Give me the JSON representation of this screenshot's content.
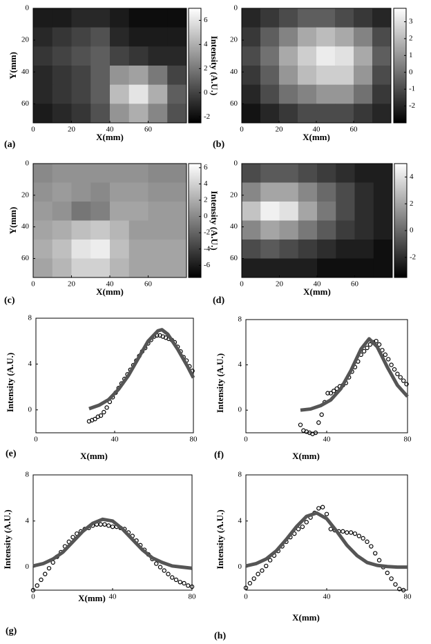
{
  "chart_data": [
    {
      "type": "heatmap",
      "label": "(a)",
      "x_label": "X(mm)",
      "y_label": "Y(mm)",
      "colorbar_label": "Intensity (A.U.)",
      "x": [
        5,
        15,
        25,
        35,
        45,
        55,
        65,
        75
      ],
      "y": [
        6,
        18,
        30,
        42,
        54,
        66
      ],
      "z": [
        [
          -1.5,
          -1.5,
          -1,
          -1,
          -1.5,
          -2,
          -2,
          -2
        ],
        [
          -1,
          -0.5,
          0,
          0.5,
          -1,
          -1.5,
          -1.5,
          -1.5
        ],
        [
          -0.5,
          0,
          0.5,
          1,
          0,
          -0.5,
          -1,
          -1
        ],
        [
          -1,
          -0.5,
          0,
          1,
          3,
          3.5,
          2,
          0
        ],
        [
          -1,
          -0.5,
          0,
          1,
          4.5,
          6,
          4,
          1
        ],
        [
          -1.5,
          -1,
          -0.5,
          0.5,
          3,
          4,
          2.5,
          0.5
        ]
      ],
      "xlim": [
        0,
        80
      ],
      "ylim": [
        0,
        72
      ],
      "xticks": [
        0,
        20,
        40,
        60
      ],
      "yticks": [
        0,
        20,
        40,
        60
      ],
      "clim": [
        -2.5,
        7
      ],
      "cticks": [
        -2,
        0,
        2,
        4,
        6
      ],
      "colormap": "gray"
    },
    {
      "type": "heatmap",
      "label": "(b)",
      "x_label": "X(mm)",
      "x": [
        5,
        15,
        25,
        35,
        45,
        55,
        65,
        75
      ],
      "y": [
        6,
        18,
        30,
        42,
        54,
        66
      ],
      "z": [
        [
          -2,
          -1.5,
          -1,
          -0.5,
          -0.5,
          -1,
          -1.5,
          -2
        ],
        [
          -1.5,
          -0.5,
          0.5,
          1.5,
          2,
          1.5,
          0.5,
          -1
        ],
        [
          -1,
          0,
          1.5,
          2.5,
          3.3,
          3,
          1.5,
          -0.5
        ],
        [
          -1.5,
          -0.5,
          1,
          2,
          2.5,
          2.5,
          1,
          -1
        ],
        [
          -2,
          -1,
          0,
          0.5,
          1,
          1,
          0,
          -1.5
        ],
        [
          -2.5,
          -2,
          -1.5,
          -1,
          -1,
          -1,
          -1.5,
          -2
        ]
      ],
      "xlim": [
        0,
        80
      ],
      "ylim": [
        0,
        72
      ],
      "xticks": [
        0,
        20,
        40,
        60
      ],
      "yticks": [
        0,
        20,
        40,
        60
      ],
      "clim": [
        -3,
        3.8
      ],
      "cticks": [
        -2,
        -1,
        0,
        1,
        2,
        3
      ],
      "colormap": "gray"
    },
    {
      "type": "heatmap",
      "label": "(c)",
      "x_label": "X(mm)",
      "y_label": "Y(mm)",
      "colorbar_label": "Intensity (A.U.)",
      "x": [
        5,
        15,
        25,
        35,
        45,
        55,
        65,
        75
      ],
      "y": [
        6,
        18,
        30,
        42,
        54,
        66
      ],
      "z": [
        [
          0,
          0.5,
          0.5,
          0.5,
          0.5,
          0.5,
          0,
          0
        ],
        [
          0.5,
          1,
          0.5,
          0,
          1,
          1,
          0.5,
          0.5
        ],
        [
          1,
          0.5,
          -1,
          -0.5,
          1.5,
          1.5,
          1,
          1
        ],
        [
          1.5,
          2,
          3,
          3.5,
          2.5,
          1,
          1,
          1
        ],
        [
          2,
          3,
          5,
          5.5,
          3,
          1.5,
          1.5,
          1.5
        ],
        [
          1.5,
          2.5,
          4,
          4,
          2.5,
          1.5,
          1.5,
          1.5
        ]
      ],
      "xlim": [
        0,
        80
      ],
      "ylim": [
        0,
        72
      ],
      "xticks": [
        0,
        20,
        40,
        60
      ],
      "yticks": [
        0,
        20,
        40,
        60
      ],
      "clim": [
        -7.5,
        6.5
      ],
      "cticks": [
        -6,
        -4,
        -2,
        0,
        2,
        4,
        6
      ],
      "colormap": "gray"
    },
    {
      "type": "heatmap",
      "label": "(d)",
      "x_label": "X(mm)",
      "x": [
        5,
        15,
        25,
        35,
        45,
        55,
        65,
        75
      ],
      "y": [
        6,
        18,
        30,
        42,
        54,
        66
      ],
      "z": [
        [
          -1,
          -0.5,
          -0.5,
          -1,
          -1.5,
          -2,
          -2.5,
          -2.5
        ],
        [
          1,
          2,
          2,
          1,
          0,
          -1,
          -2,
          -2.5
        ],
        [
          3,
          4.5,
          4,
          2,
          0.5,
          -1,
          -2,
          -2.5
        ],
        [
          1,
          2,
          1.5,
          0.5,
          -0.5,
          -1.5,
          -2,
          -2.5
        ],
        [
          -1,
          -0.5,
          -1,
          -1.5,
          -2,
          -2.5,
          -2.5,
          -3
        ],
        [
          -2.5,
          -2.5,
          -2.5,
          -2.5,
          -3,
          -3,
          -3,
          -3
        ]
      ],
      "xlim": [
        0,
        80
      ],
      "ylim": [
        0,
        72
      ],
      "xticks": [
        0,
        20,
        40,
        60
      ],
      "yticks": [
        0,
        20,
        40,
        60
      ],
      "clim": [
        -3.5,
        5
      ],
      "cticks": [
        -2,
        0,
        2,
        4
      ],
      "colormap": "gray"
    },
    {
      "type": "line",
      "label": "(e)",
      "x_label": "X(mm)",
      "y_label": "Intensity (A.U.)",
      "xlim": [
        0,
        80
      ],
      "ylim": [
        -2,
        8
      ],
      "xticks": [
        0,
        40,
        80
      ],
      "yticks": [
        0,
        4,
        8
      ],
      "series": [
        {
          "style": "markers",
          "color": "#000000",
          "x": [
            27,
            28.5,
            30,
            31.5,
            33,
            34.5,
            36,
            37.5,
            39,
            40.5,
            42,
            43.5,
            45,
            46.5,
            48,
            49.5,
            51,
            52.5,
            54,
            55.5,
            57,
            58.5,
            60,
            61.5,
            63,
            64.5,
            66,
            67.5,
            69,
            70.5,
            72,
            73.5,
            75,
            76.5,
            78,
            79.5
          ],
          "values": [
            -1,
            -0.9,
            -0.8,
            -0.6,
            -0.5,
            -0.2,
            0.2,
            0.7,
            1.1,
            1.5,
            1.9,
            2.3,
            2.7,
            3.1,
            3.5,
            3.9,
            4.3,
            4.7,
            5.1,
            5.4,
            5.8,
            6.1,
            6.4,
            6.5,
            6.5,
            6.4,
            6.3,
            6.2,
            6.1,
            5.9,
            5.5,
            5.1,
            4.6,
            4.3,
            3.8,
            3.4
          ]
        },
        {
          "style": "line",
          "color": "#555555",
          "x": [
            27,
            32,
            37,
            42,
            47,
            52,
            57,
            62,
            64,
            67,
            72,
            77,
            80
          ],
          "values": [
            0.1,
            0.4,
            0.9,
            1.8,
            3,
            4.5,
            6,
            6.9,
            7,
            6.6,
            5.3,
            3.8,
            2.8
          ]
        }
      ]
    },
    {
      "type": "line",
      "label": "(f)",
      "x_label": "X(mm)",
      "y_label": "Intensity (A.U.)",
      "xlim": [
        0,
        80
      ],
      "ylim": [
        -2,
        8
      ],
      "xticks": [
        0,
        40,
        80
      ],
      "yticks": [
        0,
        4,
        8
      ],
      "series": [
        {
          "style": "markers",
          "color": "#000000",
          "x": [
            27,
            28.5,
            30,
            31.5,
            33,
            34.5,
            36,
            37.5,
            39,
            40.5,
            42,
            43.5,
            45,
            46.5,
            48,
            49.5,
            51,
            52.5,
            54,
            55.5,
            57,
            58.5,
            60,
            61.5,
            63,
            64.5,
            66,
            67.5,
            69,
            70.5,
            72,
            73.5,
            75,
            76.5,
            78,
            79.5
          ],
          "values": [
            -1.3,
            -1.8,
            -1.9,
            -2,
            -2.1,
            -2,
            -1.1,
            -0.4,
            0.7,
            1.5,
            1.5,
            1.7,
            1.9,
            2.1,
            2.2,
            2.4,
            2.9,
            3.4,
            3.8,
            4.3,
            4.9,
            5.2,
            5.5,
            5.8,
            6,
            6.1,
            5.8,
            5.3,
            4.9,
            4.5,
            4,
            3.6,
            3.2,
            2.9,
            2.6,
            2.3
          ]
        },
        {
          "style": "line",
          "color": "#555555",
          "x": [
            27,
            32,
            37,
            42,
            47,
            52,
            57,
            61,
            65,
            70,
            75,
            80
          ],
          "values": [
            0,
            0.1,
            0.4,
            0.9,
            1.9,
            3.5,
            5.4,
            6.3,
            5.6,
            3.8,
            2.2,
            1.2
          ]
        }
      ]
    },
    {
      "type": "line",
      "label": "(g)",
      "x_label": "X(mm)",
      "y_label": "Intensity (A.U.)",
      "xlim": [
        0,
        80
      ],
      "ylim": [
        -2,
        8
      ],
      "xticks": [
        0,
        40,
        80
      ],
      "yticks": [
        0,
        4,
        8
      ],
      "series": [
        {
          "style": "markers",
          "color": "#000000",
          "x": [
            0,
            2,
            4,
            6,
            8,
            10,
            12,
            14,
            16,
            18,
            20,
            22,
            24,
            26,
            28,
            30,
            32,
            34,
            36,
            38,
            40,
            42,
            44,
            46,
            48,
            50,
            52,
            54,
            56,
            58,
            60,
            62,
            64,
            66,
            68,
            70,
            72,
            74,
            76,
            78,
            80
          ],
          "values": [
            -2,
            -1.6,
            -1.1,
            -0.6,
            -0.1,
            0.4,
            0.9,
            1.3,
            1.8,
            2.2,
            2.6,
            2.9,
            3.1,
            3.3,
            3.4,
            3.6,
            3.7,
            3.7,
            3.7,
            3.6,
            3.5,
            3.5,
            3.4,
            3.3,
            3,
            2.7,
            2.3,
            1.9,
            1.5,
            1.1,
            0.7,
            0.3,
            0,
            -0.3,
            -0.6,
            -0.9,
            -1.1,
            -1.3,
            -1.4,
            -1.6,
            -1.7
          ]
        },
        {
          "style": "line",
          "color": "#555555",
          "x": [
            0,
            5,
            10,
            15,
            20,
            25,
            30,
            35,
            40,
            45,
            50,
            55,
            60,
            65,
            70,
            75,
            80
          ],
          "values": [
            0.1,
            0.3,
            0.7,
            1.3,
            2.2,
            3.1,
            3.8,
            4.15,
            4,
            3.3,
            2.4,
            1.5,
            0.8,
            0.4,
            0.1,
            0,
            -0.1
          ]
        }
      ]
    },
    {
      "type": "line",
      "label": "(h)",
      "x_label": "X(mm)",
      "y_label": "Intensity (A.U.)",
      "xlim": [
        0,
        80
      ],
      "ylim": [
        -2,
        8
      ],
      "xticks": [
        0,
        40,
        80
      ],
      "yticks": [
        0,
        4,
        8
      ],
      "series": [
        {
          "style": "markers",
          "color": "#000000",
          "x": [
            0,
            2,
            4,
            6,
            8,
            10,
            12,
            14,
            16,
            18,
            20,
            22,
            24,
            26,
            28,
            30,
            32,
            34,
            36,
            38,
            40,
            42,
            44,
            46,
            48,
            50,
            52,
            54,
            56,
            58,
            60,
            62,
            64,
            66,
            68,
            70,
            72,
            74,
            76,
            78
          ],
          "values": [
            -1.8,
            -1.4,
            -1,
            -0.6,
            -0.3,
            0.1,
            0.6,
            1,
            1.4,
            1.8,
            2.2,
            2.6,
            2.9,
            3.3,
            3.5,
            3.9,
            4.3,
            4.7,
            5.1,
            5.2,
            4.6,
            3.3,
            3.2,
            3.1,
            3.1,
            3,
            3,
            2.9,
            2.7,
            2.5,
            2.2,
            1.8,
            1.2,
            0.6,
            0,
            -0.5,
            -1,
            -1.5,
            -1.9,
            -2
          ]
        },
        {
          "style": "line",
          "color": "#555555",
          "x": [
            0,
            5,
            10,
            15,
            20,
            25,
            30,
            35,
            40,
            45,
            50,
            55,
            60,
            65,
            70,
            75,
            80
          ],
          "values": [
            0.1,
            0.3,
            0.7,
            1.4,
            2.4,
            3.5,
            4.4,
            4.7,
            4.2,
            3.1,
            1.9,
            1,
            0.4,
            0.15,
            0.05,
            0,
            0
          ]
        }
      ]
    }
  ]
}
